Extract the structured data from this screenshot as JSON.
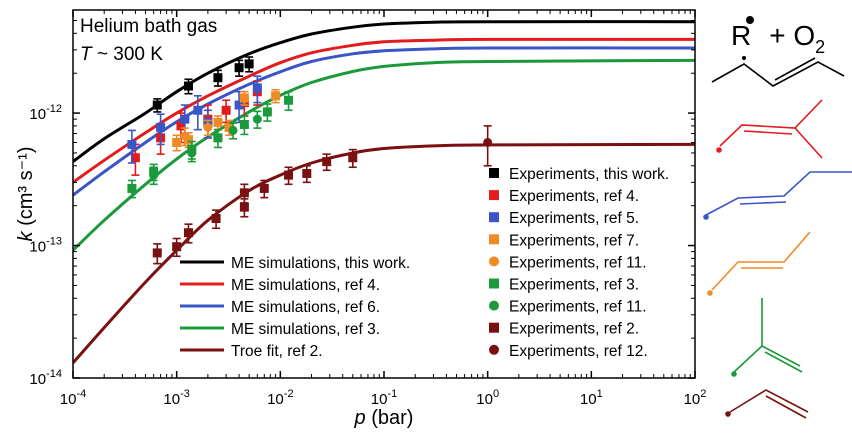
{
  "chart_data": {
    "type": "scatter",
    "title": "",
    "annotations": {
      "line1": "Helium bath gas",
      "line2_italic": "T",
      "line2_rest": " ~ 300 K"
    },
    "xlabel": {
      "italic": "p",
      "rest": " (bar)"
    },
    "ylabel": {
      "italic": "k",
      "rest": " (cm³ s⁻¹)"
    },
    "xscale": "log",
    "yscale": "log",
    "xlim": [
      0.0001,
      100
    ],
    "ylim": [
      1e-14,
      6e-12
    ],
    "x_ticks": [
      {
        "v": 0.0001,
        "m": "10",
        "e": "-4"
      },
      {
        "v": 0.001,
        "m": "10",
        "e": "-3"
      },
      {
        "v": 0.01,
        "m": "10",
        "e": "-2"
      },
      {
        "v": 0.1,
        "m": "10",
        "e": "-1"
      },
      {
        "v": 1,
        "m": "10",
        "e": "0"
      },
      {
        "v": 10,
        "m": "10",
        "e": "1"
      },
      {
        "v": 100,
        "m": "10",
        "e": "2"
      }
    ],
    "y_ticks": [
      {
        "v": 1e-14,
        "m": "10",
        "e": "-14"
      },
      {
        "v": 1e-13,
        "m": "10",
        "e": "-13"
      },
      {
        "v": 1e-12,
        "m": "10",
        "e": "-12"
      }
    ],
    "grid": false,
    "lines": [
      {
        "name": "ME simulations, this work.",
        "color": "#000000",
        "points": [
          [
            0.0001,
            4.3e-13
          ],
          [
            0.0002,
            6.4e-13
          ],
          [
            0.0005,
            1e-12
          ],
          [
            0.001,
            1.45e-12
          ],
          [
            0.002,
            2e-12
          ],
          [
            0.005,
            2.8e-12
          ],
          [
            0.01,
            3.4e-12
          ],
          [
            0.02,
            3.95e-12
          ],
          [
            0.05,
            4.45e-12
          ],
          [
            0.1,
            4.7e-12
          ],
          [
            0.3,
            4.85e-12
          ],
          [
            1,
            4.9e-12
          ],
          [
            100,
            4.9e-12
          ]
        ]
      },
      {
        "name": "ME simulations, ref 4.",
        "color": "#e41a1c",
        "points": [
          [
            0.0001,
            3e-13
          ],
          [
            0.0002,
            4.4e-13
          ],
          [
            0.0005,
            7.1e-13
          ],
          [
            0.001,
            1e-12
          ],
          [
            0.002,
            1.35e-12
          ],
          [
            0.005,
            1.9e-12
          ],
          [
            0.01,
            2.4e-12
          ],
          [
            0.02,
            2.85e-12
          ],
          [
            0.05,
            3.25e-12
          ],
          [
            0.1,
            3.45e-12
          ],
          [
            0.3,
            3.55e-12
          ],
          [
            1,
            3.6e-12
          ],
          [
            100,
            3.6e-12
          ]
        ]
      },
      {
        "name": "ME simulations, ref 6.",
        "color": "#3a55c5",
        "points": [
          [
            0.0001,
            2.4e-13
          ],
          [
            0.0002,
            3.6e-13
          ],
          [
            0.0005,
            6e-13
          ],
          [
            0.001,
            8.6e-13
          ],
          [
            0.002,
            1.17e-12
          ],
          [
            0.005,
            1.65e-12
          ],
          [
            0.01,
            2.05e-12
          ],
          [
            0.02,
            2.45e-12
          ],
          [
            0.05,
            2.8e-12
          ],
          [
            0.1,
            2.95e-12
          ],
          [
            0.3,
            3.05e-12
          ],
          [
            1,
            3.1e-12
          ],
          [
            100,
            3.1e-12
          ]
        ]
      },
      {
        "name": "ME simulations, ref 3.",
        "color": "#1a9a3a",
        "points": [
          [
            0.0001,
            9.2e-14
          ],
          [
            0.0002,
            1.55e-13
          ],
          [
            0.0005,
            2.9e-13
          ],
          [
            0.001,
            4.5e-13
          ],
          [
            0.002,
            6.6e-13
          ],
          [
            0.005,
            1.02e-12
          ],
          [
            0.01,
            1.36e-12
          ],
          [
            0.02,
            1.7e-12
          ],
          [
            0.05,
            2.06e-12
          ],
          [
            0.1,
            2.25e-12
          ],
          [
            0.3,
            2.4e-12
          ],
          [
            1,
            2.45e-12
          ],
          [
            100,
            2.5e-12
          ]
        ]
      },
      {
        "name": "Troe fit, ref 2.",
        "color": "#7a1010",
        "points": [
          [
            0.0001,
            1.3e-14
          ],
          [
            0.0002,
            2.4e-14
          ],
          [
            0.0005,
            5.3e-14
          ],
          [
            0.001,
            9.2e-14
          ],
          [
            0.002,
            1.55e-13
          ],
          [
            0.005,
            2.6e-13
          ],
          [
            0.01,
            3.4e-13
          ],
          [
            0.02,
            4.2e-13
          ],
          [
            0.05,
            5e-13
          ],
          [
            0.1,
            5.4e-13
          ],
          [
            0.3,
            5.65e-13
          ],
          [
            1,
            5.75e-13
          ],
          [
            100,
            5.8e-13
          ]
        ]
      }
    ],
    "series": [
      {
        "name": "Experiments, this work.",
        "color": "#000000",
        "marker": "square",
        "points": [
          [
            0.00065,
            1.15e-12,
            1.3e-13
          ],
          [
            0.0013,
            1.6e-12,
            2e-13
          ],
          [
            0.0025,
            1.85e-12,
            2.5e-13
          ],
          [
            0.004,
            2.2e-12,
            3e-13
          ],
          [
            0.005,
            2.35e-12,
            3e-13
          ]
        ]
      },
      {
        "name": "Experiments, ref 4.",
        "color": "#e41a1c",
        "marker": "square",
        "points": [
          [
            0.0004,
            4.6e-13,
            1.2e-13
          ],
          [
            0.0007,
            6.5e-13,
            1.6e-13
          ],
          [
            0.0011,
            8e-13,
            2e-13
          ],
          [
            0.002,
            9e-13,
            2.5e-13
          ],
          [
            0.003,
            1.05e-12,
            2e-13
          ],
          [
            0.0045,
            1.2e-12,
            2.5e-13
          ],
          [
            0.006,
            1.45e-12,
            3e-13
          ]
        ]
      },
      {
        "name": "Experiments, ref 5.",
        "color": "#3a55c5",
        "marker": "square",
        "points": [
          [
            0.00037,
            5.8e-13,
            1.6e-13
          ],
          [
            0.0007,
            7.8e-13,
            2e-13
          ],
          [
            0.0012,
            9e-13,
            2.5e-13
          ],
          [
            0.0016,
            1.05e-12,
            3e-13
          ],
          [
            0.002,
            8.5e-13,
            2e-13
          ],
          [
            0.004,
            1.15e-12,
            3e-13
          ],
          [
            0.006,
            1.55e-12,
            3.5e-13
          ]
        ]
      },
      {
        "name": "Experiments, ref 7.",
        "color": "#f08a24",
        "marker": "square",
        "points": [
          [
            0.001,
            6e-13,
            8e-14
          ],
          [
            0.0013,
            6.3e-13,
            8e-14
          ],
          [
            0.0025,
            8.5e-13,
            1e-13
          ],
          [
            0.0032,
            7.8e-13,
            1e-13
          ],
          [
            0.0045,
            1.3e-12,
            1.5e-13
          ],
          [
            0.009,
            1.35e-12,
            1.5e-13
          ]
        ]
      },
      {
        "name": "Experiments, ref 11.",
        "color": "#f08a24",
        "marker": "circle",
        "points": [
          [
            0.0012,
            6.7e-13,
            1e-13
          ],
          [
            0.002,
            7.8e-13,
            1e-13
          ]
        ]
      },
      {
        "name": "Experiments, ref 3.",
        "color": "#1a9a3a",
        "marker": "square",
        "points": [
          [
            0.00037,
            2.7e-13,
            4e-14
          ],
          [
            0.0006,
            3.6e-13,
            5e-14
          ],
          [
            0.0014,
            5.3e-13,
            8e-14
          ],
          [
            0.0025,
            6.5e-13,
            1e-13
          ],
          [
            0.0045,
            8.2e-13,
            1.3e-13
          ],
          [
            0.0075,
            1.02e-12,
            1.5e-13
          ],
          [
            0.012,
            1.25e-12,
            2e-13
          ]
        ]
      },
      {
        "name": "Experiments, ref 11.",
        "color": "#1a9a3a",
        "marker": "circle",
        "points": [
          [
            0.0006,
            3.4e-13,
            5e-14
          ],
          [
            0.0014,
            5e-13,
            7e-14
          ],
          [
            0.0035,
            7.4e-13,
            1e-13
          ],
          [
            0.006,
            9e-13,
            1.3e-13
          ]
        ]
      },
      {
        "name": "Experiments, ref 2.",
        "color": "#7a1010",
        "marker": "square",
        "points": [
          [
            0.00065,
            8.8e-14,
            1.5e-14
          ],
          [
            0.001,
            9.8e-14,
            1.5e-14
          ],
          [
            0.0013,
            1.25e-13,
            2e-14
          ],
          [
            0.0024,
            1.6e-13,
            2.5e-14
          ],
          [
            0.0045,
            1.95e-13,
            3e-14
          ],
          [
            0.0045,
            2.5e-13,
            4e-14
          ],
          [
            0.007,
            2.7e-13,
            4e-14
          ],
          [
            0.012,
            3.4e-13,
            5e-14
          ],
          [
            0.018,
            3.5e-13,
            5e-14
          ],
          [
            0.028,
            4.3e-13,
            6e-14
          ],
          [
            0.05,
            4.6e-13,
            7e-14
          ]
        ]
      },
      {
        "name": "Experiments, ref 12.",
        "color": "#7a1010",
        "marker": "circle",
        "points": [
          [
            1,
            6e-13,
            2e-13
          ]
        ]
      }
    ],
    "legends": {
      "lines_legend": [
        "ME simulations, this work.",
        "ME simulations, ref 4.",
        "ME simulations, ref 6.",
        "ME simulations, ref 3.",
        "Troe fit, ref 2."
      ],
      "markers_legend": [
        "Experiments, this work.",
        "Experiments, ref 4.",
        "Experiments, ref 5.",
        "Experiments, ref 7.",
        "Experiments, ref 11.",
        "Experiments, ref 3.",
        "Experiments, ref 11.",
        "Experiments, ref 2.",
        "Experiments, ref 12."
      ]
    },
    "reaction_label": {
      "radical": "R",
      "plus": "+ O",
      "sub": "2"
    },
    "structures": [
      {
        "name": "black-radical-structure",
        "color": "#000000"
      },
      {
        "name": "red-radical-structure",
        "color": "#e41a1c"
      },
      {
        "name": "blue-radical-structure",
        "color": "#3a55c5"
      },
      {
        "name": "orange-radical-structure",
        "color": "#f08a24"
      },
      {
        "name": "green-radical-structure",
        "color": "#1a9a3a"
      },
      {
        "name": "darkred-radical-structure",
        "color": "#7a1010"
      }
    ]
  }
}
